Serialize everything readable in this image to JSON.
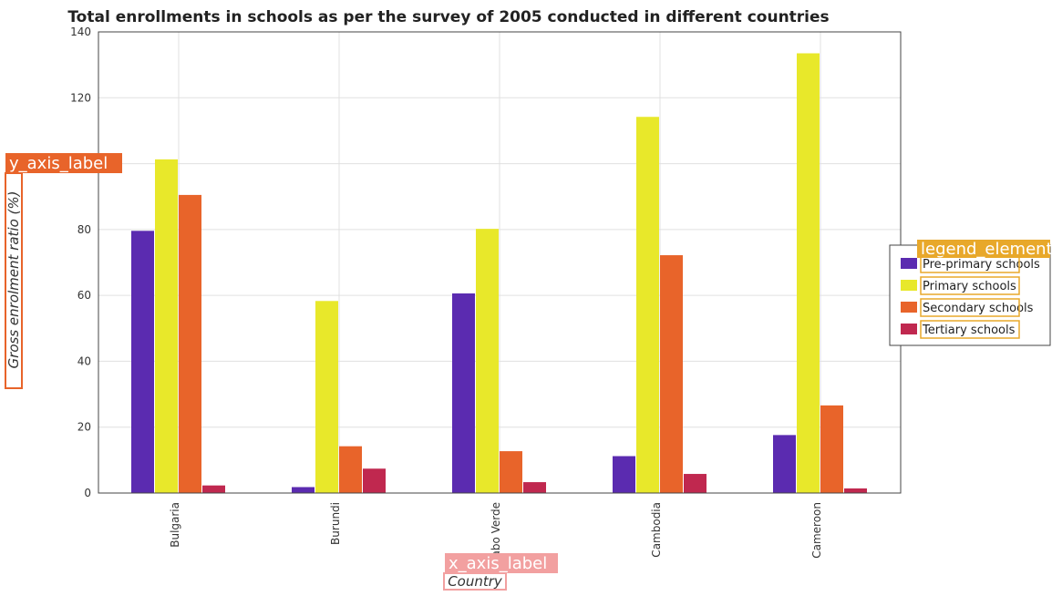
{
  "chart_data": {
    "type": "bar",
    "title": "Total enrollments in schools as per the survey of 2005 conducted in different countries",
    "xlabel": "Country",
    "ylabel": "Gross enrolment ratio (%)",
    "ylim": [
      0,
      140
    ],
    "yticks": [
      0,
      20,
      40,
      60,
      80,
      100,
      120,
      140
    ],
    "grid": true,
    "legend_position": "right",
    "categories": [
      "Bulgaria",
      "Burundi",
      "Cabo Verde",
      "Cambodia",
      "Cameroon"
    ],
    "series": [
      {
        "name": "Pre-primary schools",
        "color": "#5b2bb0",
        "values": [
          79.6,
          1.8,
          60.6,
          11.2,
          17.6
        ]
      },
      {
        "name": "Primary schools",
        "color": "#e8e82a",
        "values": [
          101.3,
          58.3,
          80.2,
          114.2,
          133.5
        ]
      },
      {
        "name": "Secondary schools",
        "color": "#e8642a",
        "values": [
          90.5,
          14.2,
          12.7,
          72.2,
          26.6
        ]
      },
      {
        "name": "Tertiary schools",
        "color": "#c0284f",
        "values": [
          2.3,
          7.4,
          3.3,
          5.8,
          1.4
        ]
      }
    ]
  },
  "annotations": {
    "y_axis_tag": "y_axis_label",
    "x_axis_tag": "x_axis_label",
    "legend_tag": "legend_element"
  }
}
